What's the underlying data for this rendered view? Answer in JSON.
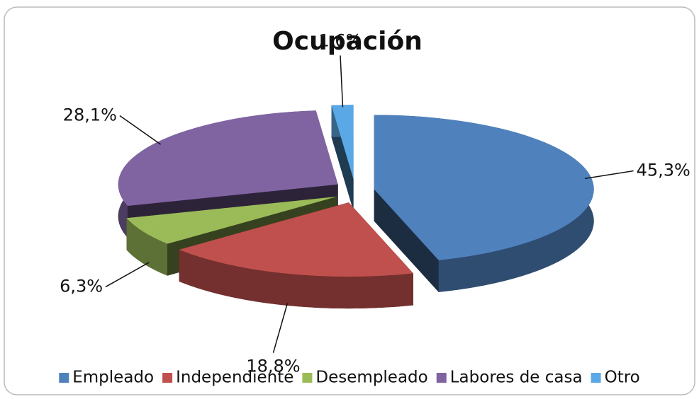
{
  "chart_data": {
    "type": "pie",
    "title": "Ocupación",
    "categories": [
      "Empleado",
      "Independiente",
      "Desempleado",
      "Labores de casa",
      "Otro"
    ],
    "values": [
      45.3,
      18.8,
      6.3,
      28.1,
      1.6
    ],
    "value_labels": [
      "45,3%",
      "18,8%",
      "6,3%",
      "28,1%",
      "1,6%"
    ],
    "colors": [
      "#4f81bd",
      "#c0504d",
      "#9bbb59",
      "#8064a2",
      "#5aa9e6"
    ],
    "legend": "bottom"
  }
}
